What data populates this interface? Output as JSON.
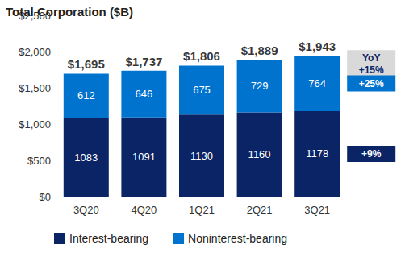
{
  "chart_data": {
    "type": "bar",
    "title": "Total Corporation ($B)",
    "categories": [
      "3Q20",
      "4Q20",
      "1Q21",
      "2Q21",
      "3Q21"
    ],
    "series": [
      {
        "name": "Interest-bearing",
        "color": "#0a2466",
        "values": [
          1083,
          1091,
          1130,
          1160,
          1178
        ]
      },
      {
        "name": "Noninterest-bearing",
        "color": "#0073cf",
        "values": [
          612,
          646,
          675,
          729,
          764
        ]
      }
    ],
    "totals": [
      1695,
      1737,
      1806,
      1889,
      1943
    ],
    "total_labels": [
      "$1,695",
      "$1,737",
      "$1,806",
      "$1,889",
      "$1,943"
    ],
    "annotations": [
      {
        "lines": [
          "YoY",
          "+15%"
        ],
        "color": "#d9d9d9"
      },
      {
        "lines": [
          "+25%"
        ],
        "series": "Noninterest-bearing"
      },
      {
        "lines": [
          "+9%"
        ],
        "series": "Interest-bearing"
      }
    ],
    "ylim": [
      0,
      2500
    ],
    "yticks": [
      {
        "value": 0,
        "label": "$0"
      },
      {
        "value": 500,
        "label": "$500"
      },
      {
        "value": 1000,
        "label": "$1,000"
      },
      {
        "value": 1500,
        "label": "$1,500"
      },
      {
        "value": 2000,
        "label": "$2,000"
      },
      {
        "value": 2500,
        "label": "$2,500"
      }
    ],
    "stacked": true,
    "data_labels": true,
    "grid": false,
    "legend": "bottom"
  }
}
